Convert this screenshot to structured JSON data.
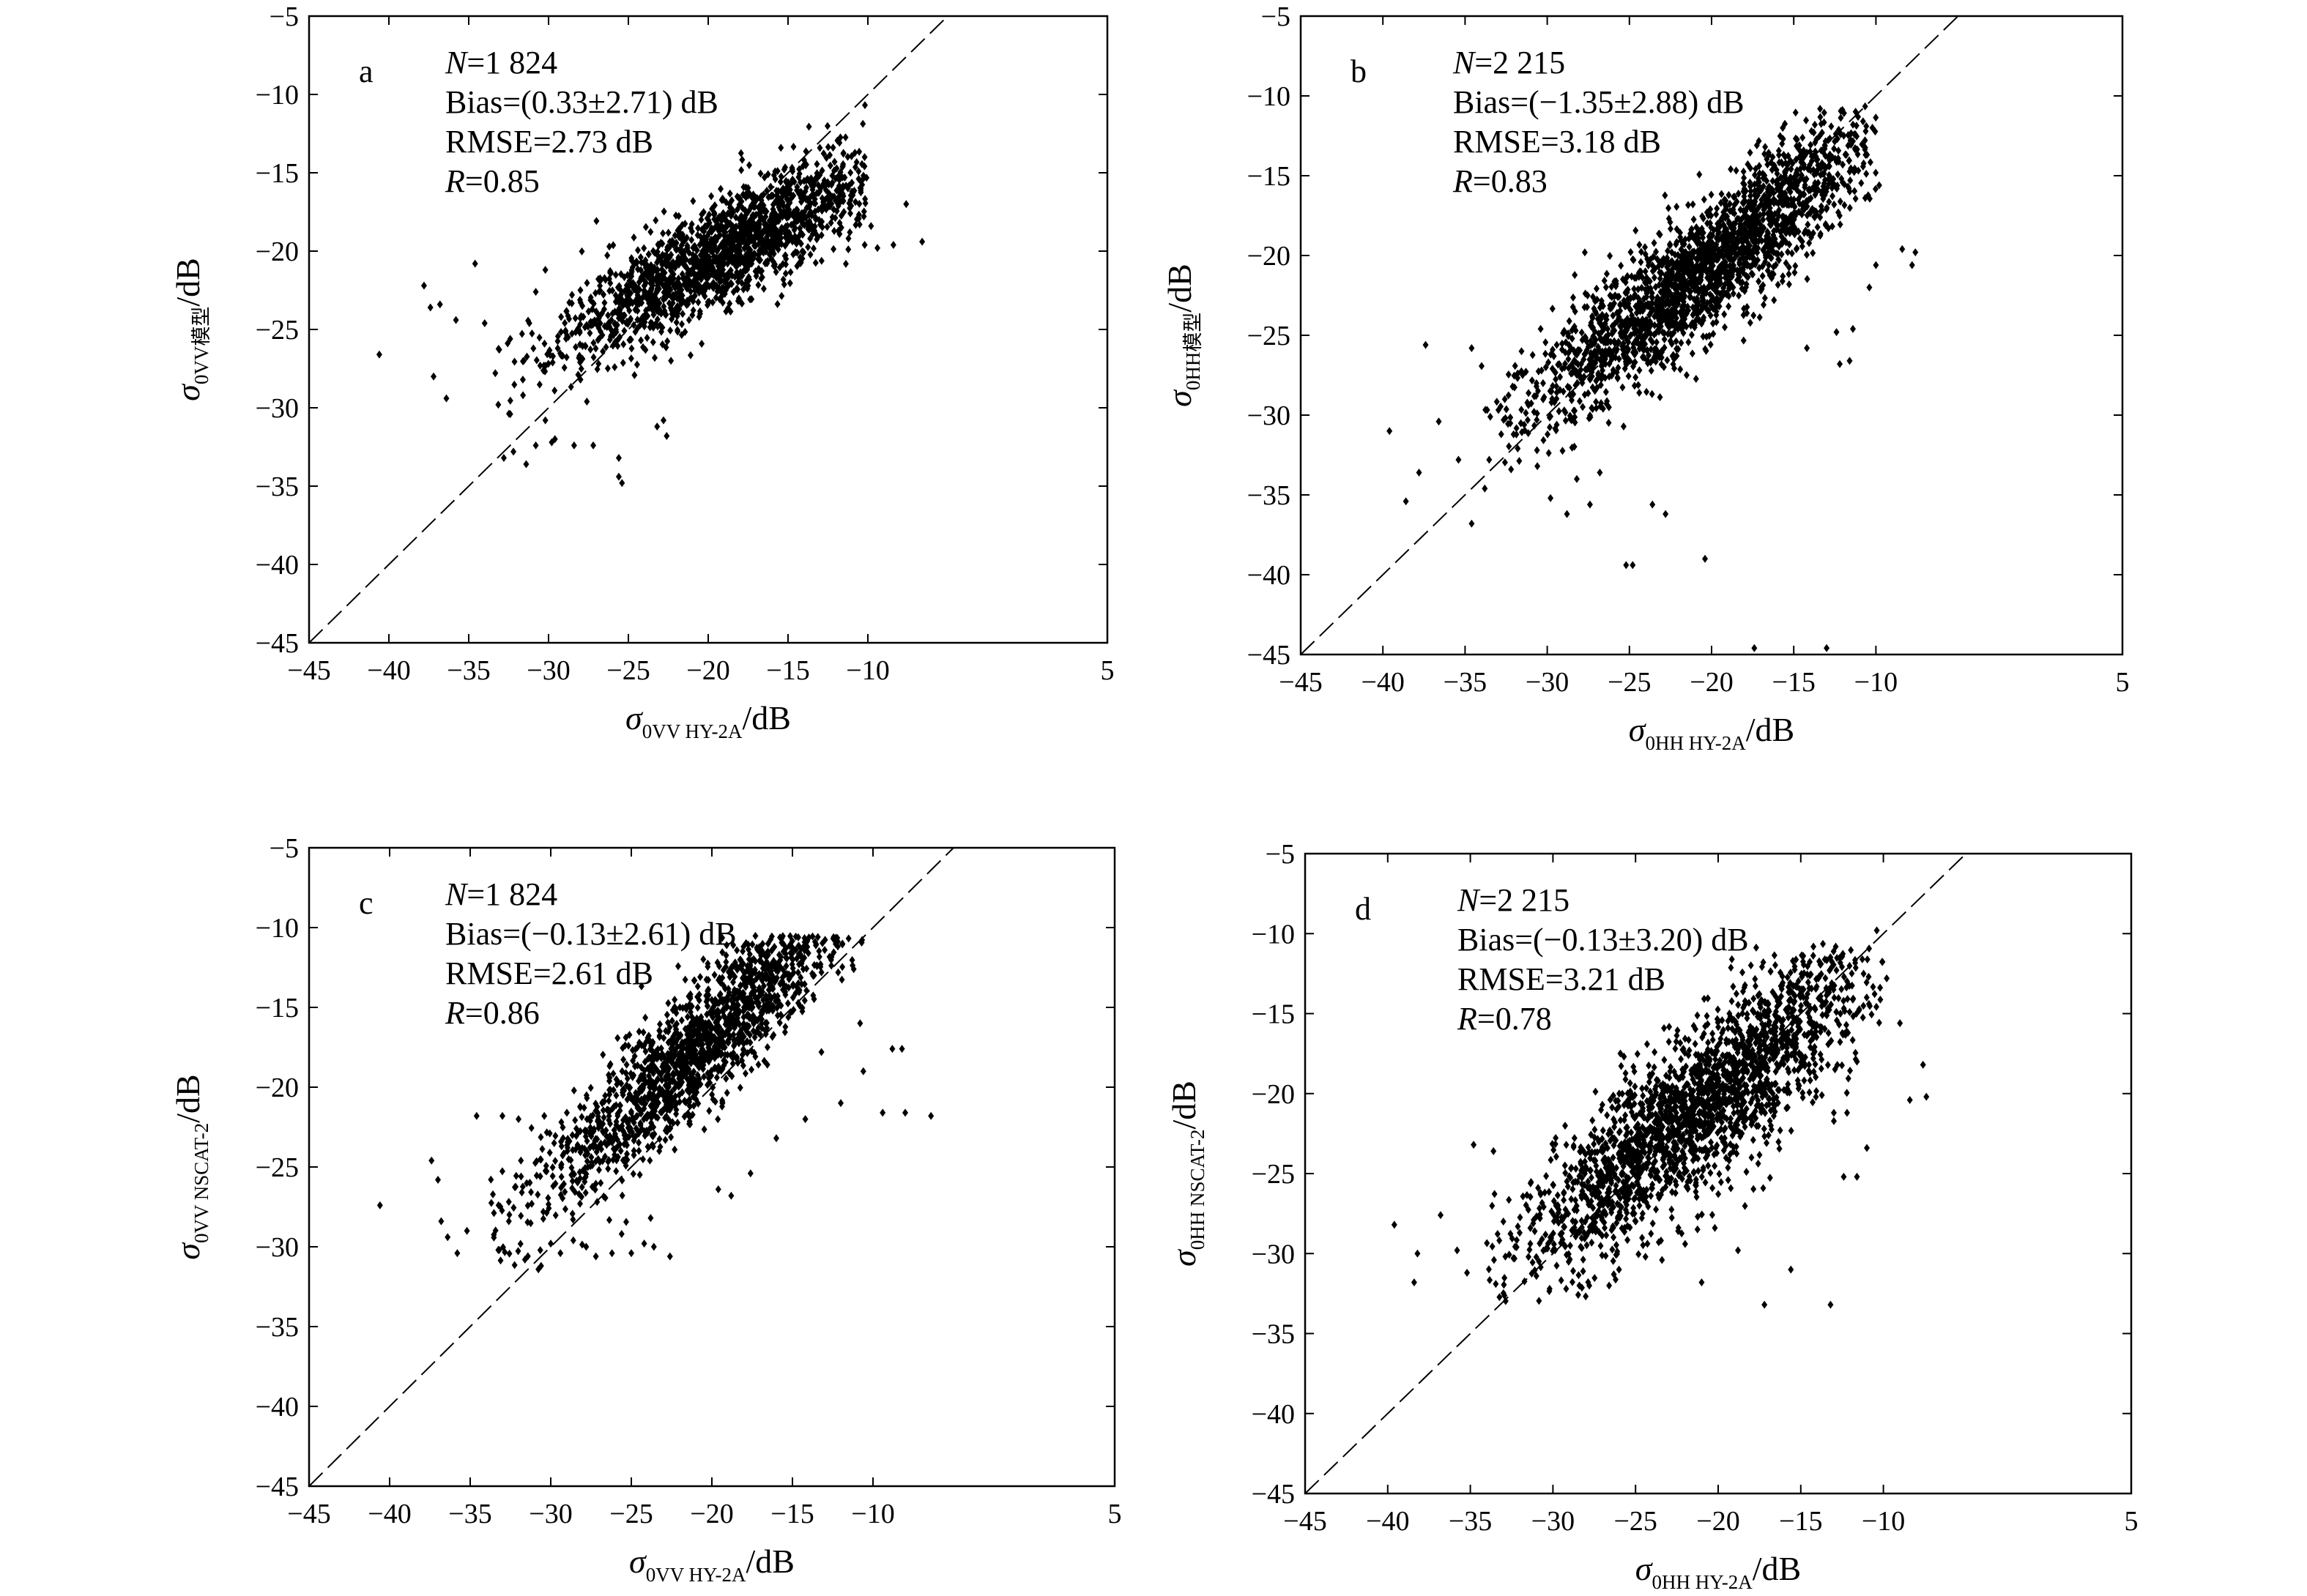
{
  "chart_data": [
    {
      "type": "scatter",
      "panel_label": "a",
      "xlim": [
        -45,
        5
      ],
      "ylim": [
        -45,
        -5
      ],
      "xticks": [
        -45,
        -40,
        -35,
        -30,
        -25,
        -20,
        -15,
        -10,
        5
      ],
      "yticks": [
        -5,
        -10,
        -15,
        -20,
        -25,
        -30,
        -35,
        -40,
        -45
      ],
      "xlabel": {
        "sym": "σ",
        "sub": "0VV HY-2A",
        "unit": "/dB"
      },
      "ylabel": {
        "sym": "σ",
        "sub": "0VV模型",
        "unit": "/dB"
      },
      "stats": {
        "n": "=1 824",
        "bias": "Bias=(0.33±2.71) dB",
        "rmse": "RMSE=2.73 dB",
        "r": "=0.85"
      },
      "reference_line": "y = x (dashed)",
      "generator": {
        "seed": 11,
        "count": 1824,
        "slope": 0.55,
        "intercept": -9.6,
        "x_center": -19.0,
        "x_spread": 5.0,
        "noise": 1.7
      },
      "points": [
        [
          -40.6,
          -26.6
        ],
        [
          -37.8,
          -22.2
        ],
        [
          -37.4,
          -23.6
        ],
        [
          -36.8,
          -23.4
        ],
        [
          -37.2,
          -28.0
        ],
        [
          -36.4,
          -29.4
        ],
        [
          -34.0,
          -24.6
        ],
        [
          -32.8,
          -33.2
        ],
        [
          -32.2,
          -32.8
        ],
        [
          -31.4,
          -33.6
        ],
        [
          -30.8,
          -32.4
        ],
        [
          -29.8,
          -32.2
        ],
        [
          -29.6,
          -32.0
        ],
        [
          -28.4,
          -32.4
        ],
        [
          -27.2,
          -32.4
        ],
        [
          -25.6,
          -34.4
        ],
        [
          -25.4,
          -34.8
        ],
        [
          -22.6,
          -31.8
        ],
        [
          -22.8,
          -30.8
        ],
        [
          -23.2,
          -31.2
        ],
        [
          -25.6,
          -33.2
        ],
        [
          -30.2,
          -21.2
        ],
        [
          -30.8,
          -22.6
        ],
        [
          -32.4,
          -25.6
        ],
        [
          -31.6,
          -29.2
        ],
        [
          -30.2,
          -30.8
        ],
        [
          -27.6,
          -29.6
        ],
        [
          -28.0,
          -28.2
        ],
        [
          -26.6,
          -26.4
        ],
        [
          -23.4,
          -23.8
        ],
        [
          -21.2,
          -24.4
        ],
        [
          -10.2,
          -19.6
        ],
        [
          -9.4,
          -19.8
        ],
        [
          -8.4,
          -19.6
        ],
        [
          -6.6,
          -19.4
        ],
        [
          -7.6,
          -17.0
        ],
        [
          -9.8,
          -18.4
        ],
        [
          -34.6,
          -20.8
        ],
        [
          -35.8,
          -24.4
        ]
      ]
    },
    {
      "type": "scatter",
      "panel_label": "b",
      "xlim": [
        -45,
        5
      ],
      "ylim": [
        -45,
        -5
      ],
      "xticks": [
        -45,
        -40,
        -35,
        -30,
        -25,
        -20,
        -15,
        -10,
        5
      ],
      "yticks": [
        -5,
        -10,
        -15,
        -20,
        -25,
        -30,
        -35,
        -40,
        -45
      ],
      "xlabel": {
        "sym": "σ",
        "sub": "0HH HY-2A",
        "unit": "/dB"
      },
      "ylabel": {
        "sym": "σ",
        "sub": "0HH模型",
        "unit": "/dB"
      },
      "stats": {
        "n": "=2 215",
        "bias": "Bias=(−1.35±2.88) dB",
        "rmse": "RMSE=3.18 dB",
        "r": "=0.83"
      },
      "reference_line": "y = x (dashed)",
      "generator": {
        "seed": 23,
        "count": 2215,
        "slope": 0.78,
        "intercept": -4.9,
        "x_center": -20.5,
        "x_spread": 5.4,
        "noise": 2.0
      },
      "points": [
        [
          -39.6,
          -31.0
        ],
        [
          -38.6,
          -35.4
        ],
        [
          -37.8,
          -33.6
        ],
        [
          -36.6,
          -30.4
        ],
        [
          -35.4,
          -32.8
        ],
        [
          -34.6,
          -36.8
        ],
        [
          -33.8,
          -34.6
        ],
        [
          -32.8,
          -31.2
        ],
        [
          -32.2,
          -33.4
        ],
        [
          -31.4,
          -30.6
        ],
        [
          -30.6,
          -33.2
        ],
        [
          -29.8,
          -35.2
        ],
        [
          -28.8,
          -36.2
        ],
        [
          -28.2,
          -34.0
        ],
        [
          -27.4,
          -35.6
        ],
        [
          -26.8,
          -33.6
        ],
        [
          -25.2,
          -39.4
        ],
        [
          -24.8,
          -39.4
        ],
        [
          -23.6,
          -35.6
        ],
        [
          -22.8,
          -36.2
        ],
        [
          -20.4,
          -39.0
        ],
        [
          -17.4,
          -44.6
        ],
        [
          -13.0,
          -44.6
        ],
        [
          -12.2,
          -26.8
        ],
        [
          -11.6,
          -26.6
        ],
        [
          -11.4,
          -24.6
        ],
        [
          -12.4,
          -24.8
        ],
        [
          -14.2,
          -25.8
        ],
        [
          -10.0,
          -20.6
        ],
        [
          -8.4,
          -19.6
        ],
        [
          -7.6,
          -19.8
        ],
        [
          -7.8,
          -20.6
        ],
        [
          -9.8,
          -15.6
        ],
        [
          -10.4,
          -22.0
        ],
        [
          -37.4,
          -25.6
        ],
        [
          -34.6,
          -25.8
        ],
        [
          -30.4,
          -24.6
        ],
        [
          -26.6,
          -29.6
        ],
        [
          -24.4,
          -28.6
        ],
        [
          -17.0,
          -22.2
        ],
        [
          -16.2,
          -22.8
        ]
      ]
    },
    {
      "type": "scatter",
      "panel_label": "c",
      "xlim": [
        -45,
        5
      ],
      "ylim": [
        -45,
        -5
      ],
      "xticks": [
        -45,
        -40,
        -35,
        -30,
        -25,
        -20,
        -15,
        -10,
        5
      ],
      "yticks": [
        -5,
        -10,
        -15,
        -20,
        -25,
        -30,
        -35,
        -40,
        -45
      ],
      "xlabel": {
        "sym": "σ",
        "sub": "0VV HY-2A",
        "unit": "/dB"
      },
      "ylabel": {
        "sym": "σ",
        "sub": "0VV NSCAT-2",
        "unit": "/dB"
      },
      "stats": {
        "n": "=1 824",
        "bias": "Bias=(−0.13±2.61) dB",
        "rmse": "RMSE=2.61 dB",
        "r": "=0.86"
      },
      "reference_line": "y = x (dashed)",
      "generator": {
        "seed": 37,
        "count": 1824,
        "slope": 0.92,
        "intercept": 1.8,
        "x_center": -20.5,
        "x_spread": 5.3,
        "noise": 2.0
      },
      "points": [
        [
          -40.6,
          -27.4
        ],
        [
          -37.4,
          -24.6
        ],
        [
          -37.0,
          -25.8
        ],
        [
          -36.8,
          -28.4
        ],
        [
          -36.4,
          -29.4
        ],
        [
          -35.8,
          -30.4
        ],
        [
          -35.2,
          -29.0
        ],
        [
          -34.6,
          -21.8
        ],
        [
          -33.2,
          -30.2
        ],
        [
          -32.6,
          -28.4
        ],
        [
          -31.6,
          -30.8
        ],
        [
          -30.6,
          -31.2
        ],
        [
          -30.0,
          -29.8
        ],
        [
          -29.4,
          -30.4
        ],
        [
          -28.6,
          -29.6
        ],
        [
          -27.8,
          -30.0
        ],
        [
          -27.2,
          -30.6
        ],
        [
          -26.2,
          -30.4
        ],
        [
          -25.0,
          -30.4
        ],
        [
          -24.2,
          -29.8
        ],
        [
          -23.6,
          -30.0
        ],
        [
          -22.6,
          -30.6
        ],
        [
          -33.0,
          -21.8
        ],
        [
          -32.0,
          -22.0
        ],
        [
          -30.4,
          -21.8
        ],
        [
          -29.0,
          -21.6
        ],
        [
          -25.6,
          -29.2
        ],
        [
          -23.8,
          -28.2
        ],
        [
          -19.6,
          -26.4
        ],
        [
          -16.0,
          -23.2
        ],
        [
          -14.2,
          -22.0
        ],
        [
          -12.0,
          -21.0
        ],
        [
          -10.6,
          -19.0
        ],
        [
          -9.4,
          -21.6
        ],
        [
          -8.0,
          -21.6
        ],
        [
          -6.4,
          -21.8
        ],
        [
          -8.8,
          -17.6
        ],
        [
          -8.2,
          -17.6
        ],
        [
          -10.8,
          -16.0
        ],
        [
          -13.2,
          -17.8
        ],
        [
          -18.8,
          -26.8
        ],
        [
          -17.6,
          -25.4
        ]
      ]
    },
    {
      "type": "scatter",
      "panel_label": "d",
      "xlim": [
        -45,
        5
      ],
      "ylim": [
        -45,
        -5
      ],
      "xticks": [
        -45,
        -40,
        -35,
        -30,
        -25,
        -20,
        -15,
        -10,
        5
      ],
      "yticks": [
        -5,
        -10,
        -15,
        -20,
        -25,
        -30,
        -35,
        -40,
        -45
      ],
      "xlabel": {
        "sym": "σ",
        "sub": "0HH HY-2A",
        "unit": "/dB"
      },
      "ylabel": {
        "sym": "σ",
        "sub": "0HH NSCAT-2",
        "unit": "/dB"
      },
      "stats": {
        "n": "=2 215",
        "bias": "Bias=(−0.13±3.20) dB",
        "rmse": "RMSE=3.21 dB",
        "r": "=0.78"
      },
      "reference_line": "y = x (dashed)",
      "generator": {
        "seed": 53,
        "count": 2215,
        "slope": 0.82,
        "intercept": -3.5,
        "x_center": -21.0,
        "x_spread": 5.4,
        "noise": 2.6
      },
      "points": [
        [
          -39.6,
          -28.2
        ],
        [
          -38.2,
          -30.0
        ],
        [
          -38.4,
          -31.8
        ],
        [
          -36.8,
          -27.6
        ],
        [
          -35.8,
          -29.8
        ],
        [
          -35.2,
          -31.2
        ],
        [
          -34.8,
          -23.2
        ],
        [
          -33.6,
          -23.6
        ],
        [
          -33.0,
          -28.0
        ],
        [
          -32.2,
          -29.6
        ],
        [
          -31.0,
          -31.4
        ],
        [
          -30.2,
          -32.2
        ],
        [
          -29.2,
          -32.2
        ],
        [
          -28.4,
          -32.0
        ],
        [
          -27.8,
          -32.0
        ],
        [
          -26.6,
          -32.0
        ],
        [
          -26.0,
          -31.0
        ],
        [
          -24.4,
          -30.2
        ],
        [
          -23.4,
          -30.4
        ],
        [
          -21.0,
          -31.8
        ],
        [
          -17.2,
          -33.2
        ],
        [
          -13.2,
          -33.2
        ],
        [
          -15.6,
          -31.0
        ],
        [
          -12.4,
          -25.2
        ],
        [
          -11.6,
          -25.2
        ],
        [
          -11.0,
          -23.4
        ],
        [
          -9.0,
          -15.6
        ],
        [
          -7.6,
          -18.2
        ],
        [
          -7.4,
          -20.2
        ],
        [
          -8.4,
          -20.4
        ],
        [
          -9.8,
          -12.8
        ],
        [
          -10.4,
          -9.8
        ],
        [
          -11.6,
          -18.0
        ],
        [
          -12.2,
          -21.2
        ],
        [
          -13.0,
          -21.2
        ],
        [
          -22.0,
          -29.4
        ],
        [
          -20.2,
          -28.4
        ],
        [
          -18.8,
          -29.8
        ]
      ]
    }
  ]
}
